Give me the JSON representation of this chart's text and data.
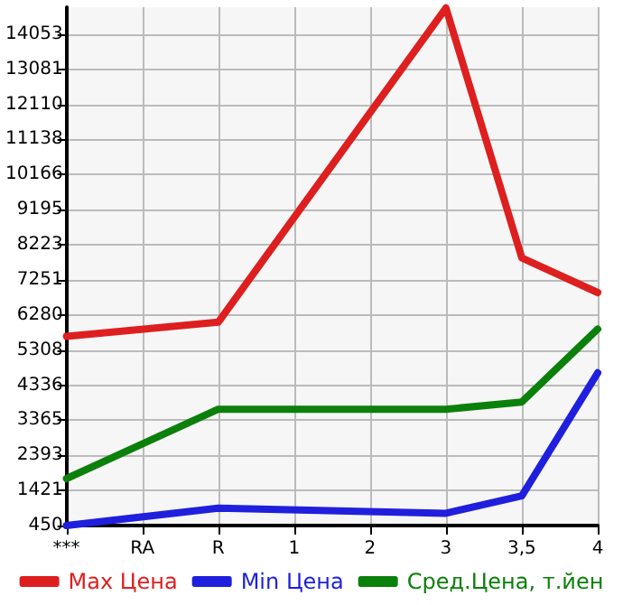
{
  "chart_data": {
    "type": "line",
    "categories": [
      "***",
      "RA",
      "R",
      "1",
      "2",
      "3",
      "3,5",
      "4"
    ],
    "series": [
      {
        "name": "Max Цена",
        "color": "#dd1f1f",
        "values": [
          5690,
          null,
          6080,
          null,
          null,
          14780,
          7860,
          6900
        ]
      },
      {
        "name": "Min Цена",
        "color": "#1f1fdd",
        "values": [
          450,
          null,
          930,
          null,
          null,
          790,
          1270,
          4680
        ]
      },
      {
        "name": "Сред.Цена, т.йен",
        "color": "#0b800b",
        "values": [
          1750,
          null,
          3670,
          null,
          null,
          3670,
          3870,
          5890
        ]
      }
    ],
    "ylim": [
      450,
      14800
    ],
    "yticks": [
      450,
      1421,
      2393,
      3365,
      4336,
      5308,
      6280,
      7251,
      8223,
      9195,
      10166,
      11138,
      12110,
      13081,
      14053
    ],
    "grid": true,
    "legend": "bottom",
    "marker": "none",
    "line_style": "solid"
  }
}
